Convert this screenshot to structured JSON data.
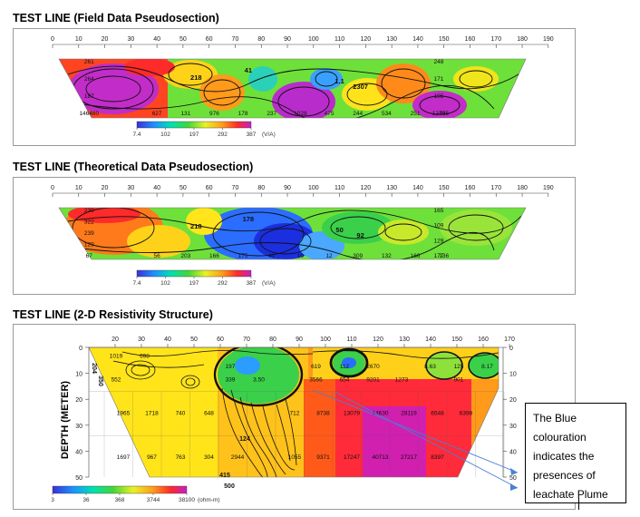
{
  "chart_data": [
    {
      "type": "heatmap",
      "title": "TEST LINE (Field Data Pseudosection)",
      "x_ticks": [
        0,
        10,
        20,
        30,
        40,
        50,
        60,
        70,
        80,
        90,
        100,
        110,
        120,
        130,
        140,
        150,
        160,
        170,
        180,
        190
      ],
      "color_scale": {
        "ticks": [
          "7.4",
          "102",
          "197",
          "292",
          "387"
        ],
        "unit": "(V/A)"
      },
      "row_labels": [
        {
          "x": 14,
          "values": [
            "261",
            "264",
            "187",
            "146460"
          ]
        },
        {
          "x": 148,
          "values": [
            "248",
            "171",
            "105",
            "1240"
          ]
        }
      ],
      "bottom_row": [
        "627",
        "131",
        "976",
        "178",
        "237",
        "1028",
        "475",
        "244",
        "534",
        "251",
        "785"
      ],
      "inner_labels": [
        "218",
        "1.1",
        "2307",
        "41"
      ]
    },
    {
      "type": "heatmap",
      "title": "TEST LINE (Theoretical Data Pseudosection)",
      "x_ticks": [
        0,
        10,
        20,
        30,
        40,
        50,
        60,
        70,
        80,
        90,
        100,
        110,
        120,
        130,
        140,
        150,
        160,
        170,
        180,
        190
      ],
      "color_scale": {
        "ticks": [
          "7.4",
          "102",
          "197",
          "292",
          "387"
        ],
        "unit": "(V/A)"
      },
      "row_labels": [
        {
          "x": 14,
          "values": [
            "239",
            "322",
            "239",
            "129",
            "67"
          ]
        },
        {
          "x": 148,
          "values": [
            "165",
            "109",
            "129",
            "177"
          ]
        }
      ],
      "bottom_row": [
        "56",
        "203",
        "166",
        "175",
        "41",
        "10",
        "12",
        "309",
        "132",
        "166",
        "136"
      ],
      "inner_labels": [
        "218",
        "50",
        "92",
        "178"
      ]
    },
    {
      "type": "heatmap",
      "title": "TEST LINE (2-D Resistivity Structure)",
      "ylabel": "DEPTH (METER)",
      "x_ticks": [
        20,
        30,
        40,
        50,
        60,
        70,
        80,
        90,
        100,
        110,
        120,
        130,
        140,
        150,
        160,
        170
      ],
      "y_ticks": [
        0,
        10,
        20,
        30,
        40,
        50
      ],
      "color_scale": {
        "ticks": [
          "3",
          "36",
          "368",
          "3744",
          "38100"
        ],
        "unit": "(ohm-m)"
      },
      "cell_rows": [
        {
          "depth": 3,
          "values": [
            "1019",
            "698",
            "",
            "",
            "",
            "",
            "",
            "",
            "",
            "",
            "",
            "",
            "",
            ""
          ]
        },
        {
          "depth": 7,
          "values": [
            "",
            "",
            "",
            "",
            "197",
            "",
            "",
            "619",
            "112",
            "2670",
            "",
            "8.63",
            "125",
            "8.17"
          ]
        },
        {
          "depth": 12,
          "values": [
            "552",
            "",
            "",
            "",
            "339",
            "3.50",
            "",
            "3566",
            "654",
            "9201",
            "1273",
            "",
            "901",
            ""
          ]
        },
        {
          "depth": 25,
          "values": [
            "1965",
            "1718",
            "740",
            "648",
            "",
            "",
            "712",
            "8738",
            "13079",
            "14630",
            "28119",
            "6548",
            "6398",
            ""
          ]
        },
        {
          "depth": 42,
          "values": [
            "1697",
            "967",
            "763",
            "304",
            "2944",
            "",
            "1055",
            "9371",
            "17247",
            "40713",
            "27217",
            "8397",
            "",
            ""
          ]
        }
      ],
      "contour_labels": [
        "204",
        "350",
        "415",
        "500",
        "124"
      ],
      "annotation": "The Blue colouration indicates the presences of leachate Plume"
    }
  ]
}
